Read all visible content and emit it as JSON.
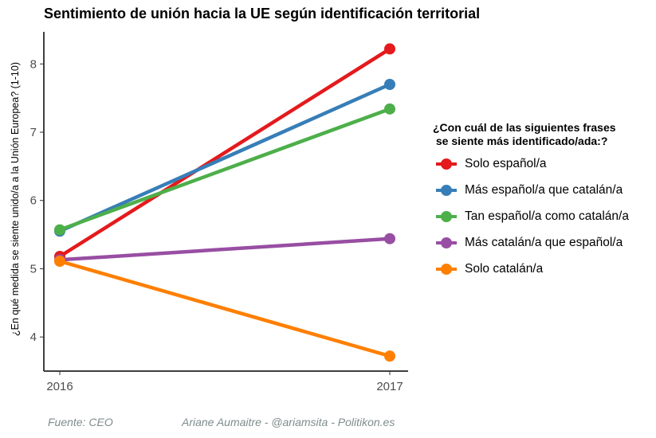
{
  "chart_data": {
    "type": "line",
    "title": "Sentimiento de unión hacia la UE según identificación territorial",
    "ylabel": "¿En qué medida se siente unido/a a la Unión Europea? (1-10)",
    "xlabel": "",
    "x": [
      "2016",
      "2017"
    ],
    "ylim": [
      3.5,
      8.47
    ],
    "yticks": [
      "4",
      "5",
      "6",
      "7",
      "8"
    ],
    "grid": false,
    "legend_title": "¿Con cuál de las siguientes frases\n se siente más identificado/ada:?",
    "legend_placement": "right",
    "series": [
      {
        "name": "Solo español/a",
        "values": [
          5.18,
          8.22
        ],
        "color": "#e41a1c"
      },
      {
        "name": "Más español/a que catalán/a",
        "values": [
          5.55,
          7.7
        ],
        "color": "#377eb8"
      },
      {
        "name": "Tan español/a como catalán/a",
        "values": [
          5.57,
          7.34
        ],
        "color": "#4daf4a"
      },
      {
        "name": "Más catalán/a que español/a",
        "values": [
          5.13,
          5.44
        ],
        "color": "#984ea3"
      },
      {
        "name": "Solo catalán/a",
        "values": [
          5.11,
          3.72
        ],
        "color": "#ff7f00"
      }
    ]
  },
  "caption": {
    "source": "Fuente: CEO",
    "author": "Ariane Aumaitre - @ariamsita - Politikon.es"
  }
}
